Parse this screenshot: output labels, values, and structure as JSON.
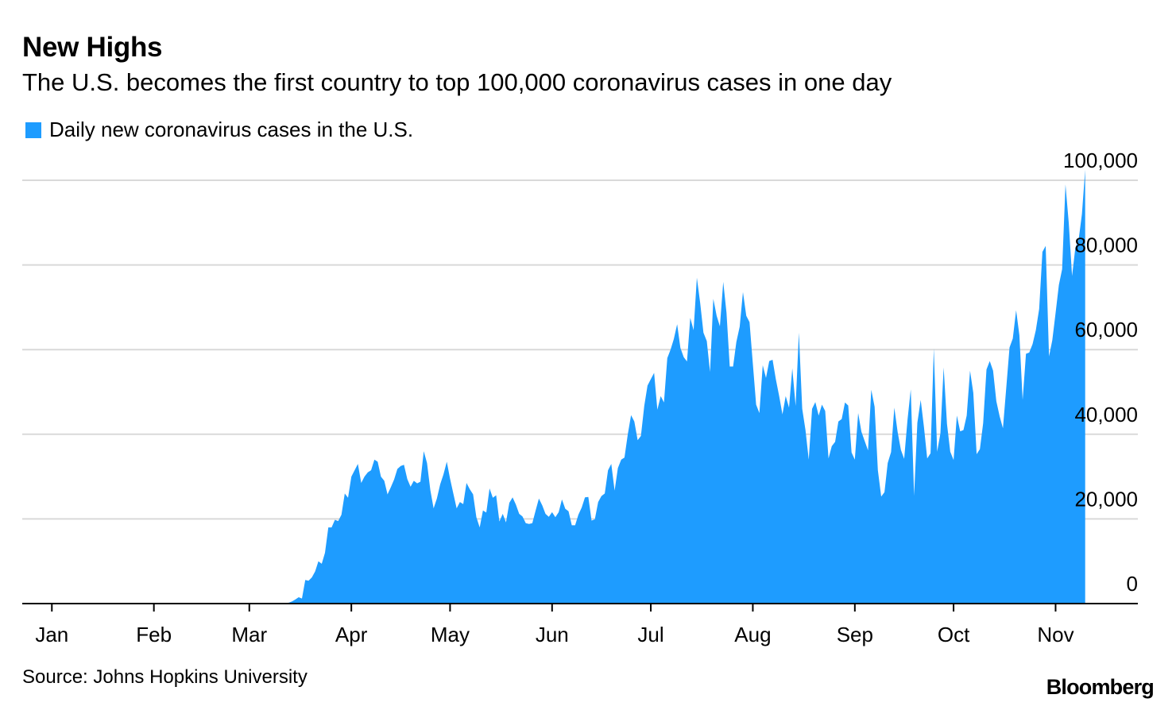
{
  "title": "New Highs",
  "subtitle": "The U.S. becomes the first country to top 100,000 coronavirus cases in one day",
  "source": "Source: Johns Hopkins University",
  "brand": "Bloomberg",
  "colors": {
    "series": "#1E9CFF",
    "grid": "#D9D9D9",
    "axis": "#000000"
  },
  "chart_data": {
    "type": "area",
    "title": "New Highs",
    "subtitle": "The U.S. becomes the first country to top 100,000 coronavirus cases in one day",
    "xlabel": "",
    "ylabel": "",
    "ylim": [
      0,
      100000
    ],
    "yticks": [
      {
        "value": 0,
        "label": "0"
      },
      {
        "value": 20000,
        "label": "20,000"
      },
      {
        "value": 40000,
        "label": "40,000"
      },
      {
        "value": 60000,
        "label": "60,000"
      },
      {
        "value": 80000,
        "label": "80,000"
      },
      {
        "value": 100000,
        "label": "100,000"
      }
    ],
    "xticks": [
      {
        "day": 0,
        "label": "Jan"
      },
      {
        "day": 31,
        "label": "Feb"
      },
      {
        "day": 60,
        "label": "Mar"
      },
      {
        "day": 91,
        "label": "Apr"
      },
      {
        "day": 121,
        "label": "May"
      },
      {
        "day": 152,
        "label": "Jun"
      },
      {
        "day": 182,
        "label": "Jul"
      },
      {
        "day": 213,
        "label": "Aug"
      },
      {
        "day": 244,
        "label": "Sep"
      },
      {
        "day": 274,
        "label": "Oct"
      },
      {
        "day": 305,
        "label": "Nov"
      }
    ],
    "xlim": [
      -9,
      330
    ],
    "grid": true,
    "legend_position": "top-left",
    "series": [
      {
        "name": "Daily new coronavirus cases in the U.S.",
        "color": "#1E9CFF",
        "points": [
          [
            0,
            0
          ],
          [
            68,
            0
          ],
          [
            70,
            100
          ],
          [
            72,
            200
          ],
          [
            73,
            500
          ],
          [
            74,
            1000
          ],
          [
            75,
            1500
          ],
          [
            76,
            1200
          ],
          [
            77,
            5600
          ],
          [
            78,
            5400
          ],
          [
            79,
            6200
          ],
          [
            80,
            7600
          ],
          [
            81,
            10000
          ],
          [
            82,
            9400
          ],
          [
            83,
            12000
          ],
          [
            84,
            18000
          ],
          [
            85,
            18000
          ],
          [
            86,
            19800
          ],
          [
            87,
            19500
          ],
          [
            88,
            21000
          ],
          [
            89,
            26000
          ],
          [
            90,
            25000
          ],
          [
            91,
            30000
          ],
          [
            92,
            31500
          ],
          [
            93,
            33000
          ],
          [
            94,
            28500
          ],
          [
            95,
            30000
          ],
          [
            96,
            31000
          ],
          [
            97,
            31500
          ],
          [
            98,
            34000
          ],
          [
            99,
            33500
          ],
          [
            100,
            30000
          ],
          [
            101,
            29000
          ],
          [
            102,
            25800
          ],
          [
            103,
            27500
          ],
          [
            104,
            29300
          ],
          [
            105,
            31800
          ],
          [
            106,
            32500
          ],
          [
            107,
            32800
          ],
          [
            108,
            29400
          ],
          [
            109,
            27600
          ],
          [
            110,
            29000
          ],
          [
            111,
            28400
          ],
          [
            112,
            28800
          ],
          [
            113,
            36000
          ],
          [
            114,
            33200
          ],
          [
            115,
            26800
          ],
          [
            116,
            22500
          ],
          [
            117,
            24800
          ],
          [
            118,
            28200
          ],
          [
            119,
            30500
          ],
          [
            120,
            33500
          ],
          [
            121,
            29500
          ],
          [
            122,
            26000
          ],
          [
            123,
            22500
          ],
          [
            124,
            24000
          ],
          [
            125,
            23500
          ],
          [
            126,
            28500
          ],
          [
            127,
            27000
          ],
          [
            128,
            25800
          ],
          [
            129,
            20400
          ],
          [
            130,
            18000
          ],
          [
            131,
            22000
          ],
          [
            132,
            21500
          ],
          [
            133,
            27200
          ],
          [
            134,
            25000
          ],
          [
            135,
            25600
          ],
          [
            136,
            19400
          ],
          [
            137,
            21200
          ],
          [
            138,
            19200
          ],
          [
            139,
            23800
          ],
          [
            140,
            25100
          ],
          [
            141,
            23400
          ],
          [
            142,
            21200
          ],
          [
            143,
            20600
          ],
          [
            144,
            19000
          ],
          [
            145,
            18800
          ],
          [
            146,
            19000
          ],
          [
            147,
            22000
          ],
          [
            148,
            24800
          ],
          [
            149,
            23200
          ],
          [
            150,
            21200
          ],
          [
            151,
            20500
          ],
          [
            152,
            21600
          ],
          [
            153,
            20400
          ],
          [
            154,
            21600
          ],
          [
            155,
            24600
          ],
          [
            156,
            22400
          ],
          [
            157,
            21800
          ],
          [
            158,
            18500
          ],
          [
            159,
            18500
          ],
          [
            160,
            21000
          ],
          [
            161,
            22700
          ],
          [
            162,
            25100
          ],
          [
            163,
            25200
          ],
          [
            164,
            19600
          ],
          [
            165,
            19900
          ],
          [
            166,
            24000
          ],
          [
            167,
            25400
          ],
          [
            168,
            26000
          ],
          [
            169,
            31500
          ],
          [
            170,
            33000
          ],
          [
            171,
            26700
          ],
          [
            172,
            32000
          ],
          [
            173,
            34000
          ],
          [
            174,
            34500
          ],
          [
            175,
            40000
          ],
          [
            176,
            44500
          ],
          [
            177,
            43000
          ],
          [
            178,
            38600
          ],
          [
            179,
            39600
          ],
          [
            180,
            46700
          ],
          [
            181,
            51500
          ],
          [
            182,
            53000
          ],
          [
            183,
            54500
          ],
          [
            184,
            45800
          ],
          [
            185,
            49000
          ],
          [
            186,
            47500
          ],
          [
            187,
            58000
          ],
          [
            188,
            60000
          ],
          [
            189,
            62500
          ],
          [
            190,
            66000
          ],
          [
            191,
            60400
          ],
          [
            192,
            58200
          ],
          [
            193,
            57200
          ],
          [
            194,
            67500
          ],
          [
            195,
            64600
          ],
          [
            196,
            77000
          ],
          [
            197,
            71000
          ],
          [
            198,
            64000
          ],
          [
            199,
            62000
          ],
          [
            200,
            54700
          ],
          [
            201,
            72000
          ],
          [
            202,
            68000
          ],
          [
            203,
            65500
          ],
          [
            204,
            76000
          ],
          [
            205,
            68700
          ],
          [
            206,
            56000
          ],
          [
            207,
            56000
          ],
          [
            208,
            61800
          ],
          [
            209,
            65400
          ],
          [
            210,
            73600
          ],
          [
            211,
            68000
          ],
          [
            212,
            66500
          ],
          [
            213,
            56800
          ],
          [
            214,
            47000
          ],
          [
            215,
            45000
          ],
          [
            216,
            56300
          ],
          [
            217,
            53300
          ],
          [
            218,
            57300
          ],
          [
            219,
            57600
          ],
          [
            220,
            53000
          ],
          [
            221,
            49000
          ],
          [
            222,
            44700
          ],
          [
            223,
            49000
          ],
          [
            224,
            46300
          ],
          [
            225,
            55600
          ],
          [
            226,
            46700
          ],
          [
            227,
            64000
          ],
          [
            228,
            46000
          ],
          [
            229,
            41000
          ],
          [
            230,
            34000
          ],
          [
            231,
            46000
          ],
          [
            232,
            47600
          ],
          [
            233,
            44400
          ],
          [
            234,
            47000
          ],
          [
            235,
            45500
          ],
          [
            236,
            34300
          ],
          [
            237,
            37200
          ],
          [
            238,
            38200
          ],
          [
            239,
            43000
          ],
          [
            240,
            43600
          ],
          [
            241,
            47500
          ],
          [
            242,
            46800
          ],
          [
            243,
            35700
          ],
          [
            244,
            34000
          ],
          [
            245,
            45000
          ],
          [
            246,
            40600
          ],
          [
            247,
            38400
          ],
          [
            248,
            36200
          ],
          [
            249,
            50500
          ],
          [
            250,
            46500
          ],
          [
            251,
            31500
          ],
          [
            252,
            25300
          ],
          [
            253,
            26300
          ],
          [
            254,
            33200
          ],
          [
            255,
            35800
          ],
          [
            256,
            46300
          ],
          [
            257,
            40500
          ],
          [
            258,
            36300
          ],
          [
            259,
            34200
          ],
          [
            260,
            43400
          ],
          [
            261,
            50600
          ],
          [
            262,
            25500
          ],
          [
            263,
            42700
          ],
          [
            264,
            48100
          ],
          [
            265,
            41700
          ],
          [
            266,
            34300
          ],
          [
            267,
            35500
          ],
          [
            268,
            60300
          ],
          [
            269,
            35900
          ],
          [
            270,
            40200
          ],
          [
            271,
            55800
          ],
          [
            272,
            42400
          ],
          [
            273,
            35900
          ],
          [
            274,
            33900
          ],
          [
            275,
            44400
          ],
          [
            276,
            40700
          ],
          [
            277,
            41000
          ],
          [
            278,
            44400
          ],
          [
            279,
            55000
          ],
          [
            280,
            49800
          ],
          [
            281,
            35300
          ],
          [
            282,
            36500
          ],
          [
            283,
            42600
          ],
          [
            284,
            55300
          ],
          [
            285,
            57300
          ],
          [
            286,
            55000
          ],
          [
            287,
            47800
          ],
          [
            288,
            44200
          ],
          [
            289,
            41400
          ],
          [
            290,
            50800
          ],
          [
            291,
            60500
          ],
          [
            292,
            62600
          ],
          [
            293,
            69300
          ],
          [
            294,
            63400
          ],
          [
            295,
            48100
          ],
          [
            296,
            59000
          ],
          [
            297,
            59300
          ],
          [
            298,
            61300
          ],
          [
            299,
            64600
          ],
          [
            300,
            69600
          ],
          [
            301,
            83100
          ],
          [
            302,
            84500
          ],
          [
            303,
            58400
          ],
          [
            304,
            62200
          ],
          [
            305,
            68700
          ],
          [
            306,
            75300
          ],
          [
            307,
            79000
          ],
          [
            308,
            99000
          ],
          [
            309,
            90000
          ],
          [
            310,
            77400
          ],
          [
            311,
            84000
          ],
          [
            312,
            86000
          ],
          [
            313,
            92000
          ],
          [
            314,
            102500
          ],
          [
            314,
            0
          ]
        ]
      }
    ]
  }
}
